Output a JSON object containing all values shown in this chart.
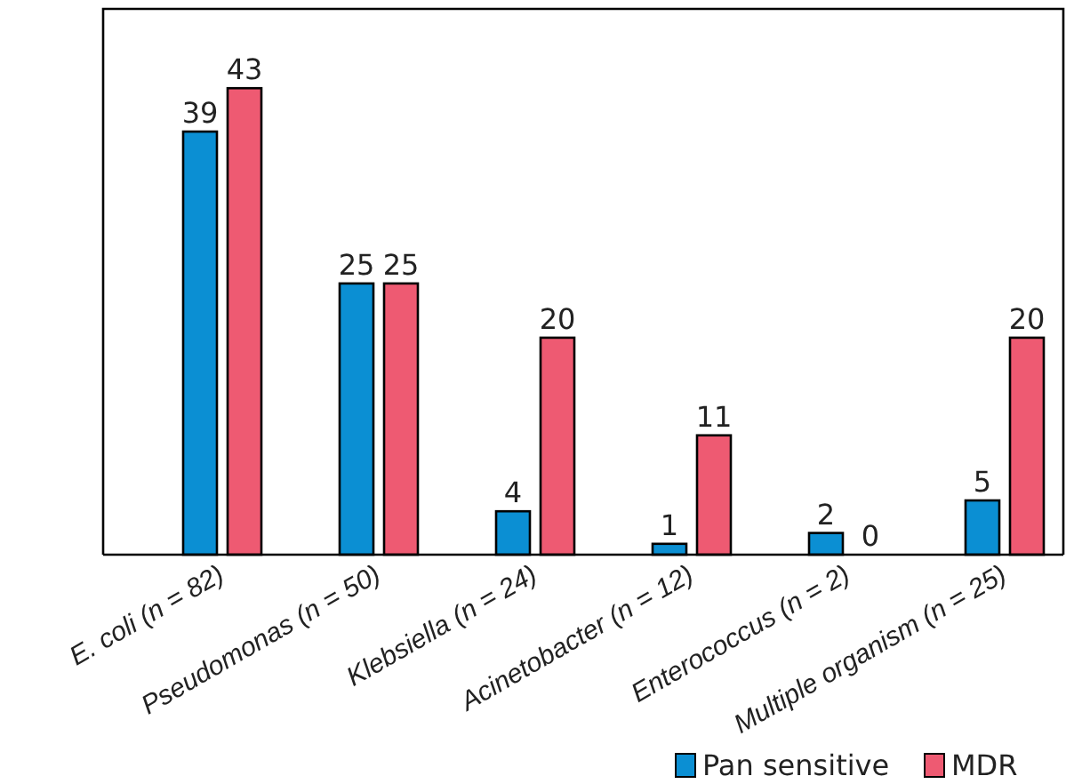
{
  "chart_data": {
    "type": "bar",
    "categories": [
      "E. coli (n = 82)",
      "Pseudomonas (n = 50)",
      "Klebsiella (n = 24)",
      "Acinetobacter (n = 12)",
      "Enterococcus (n = 2)",
      "Multiple organism (n = 25)"
    ],
    "series": [
      {
        "name": "Pan sensitive",
        "color": "#0b8fd3",
        "values": [
          39,
          25,
          4,
          1,
          2,
          5
        ]
      },
      {
        "name": "MDR",
        "color": "#ee5a72",
        "values": [
          43,
          25,
          20,
          11,
          0,
          20
        ]
      }
    ],
    "data_labels": true,
    "legend": "bottom right"
  }
}
